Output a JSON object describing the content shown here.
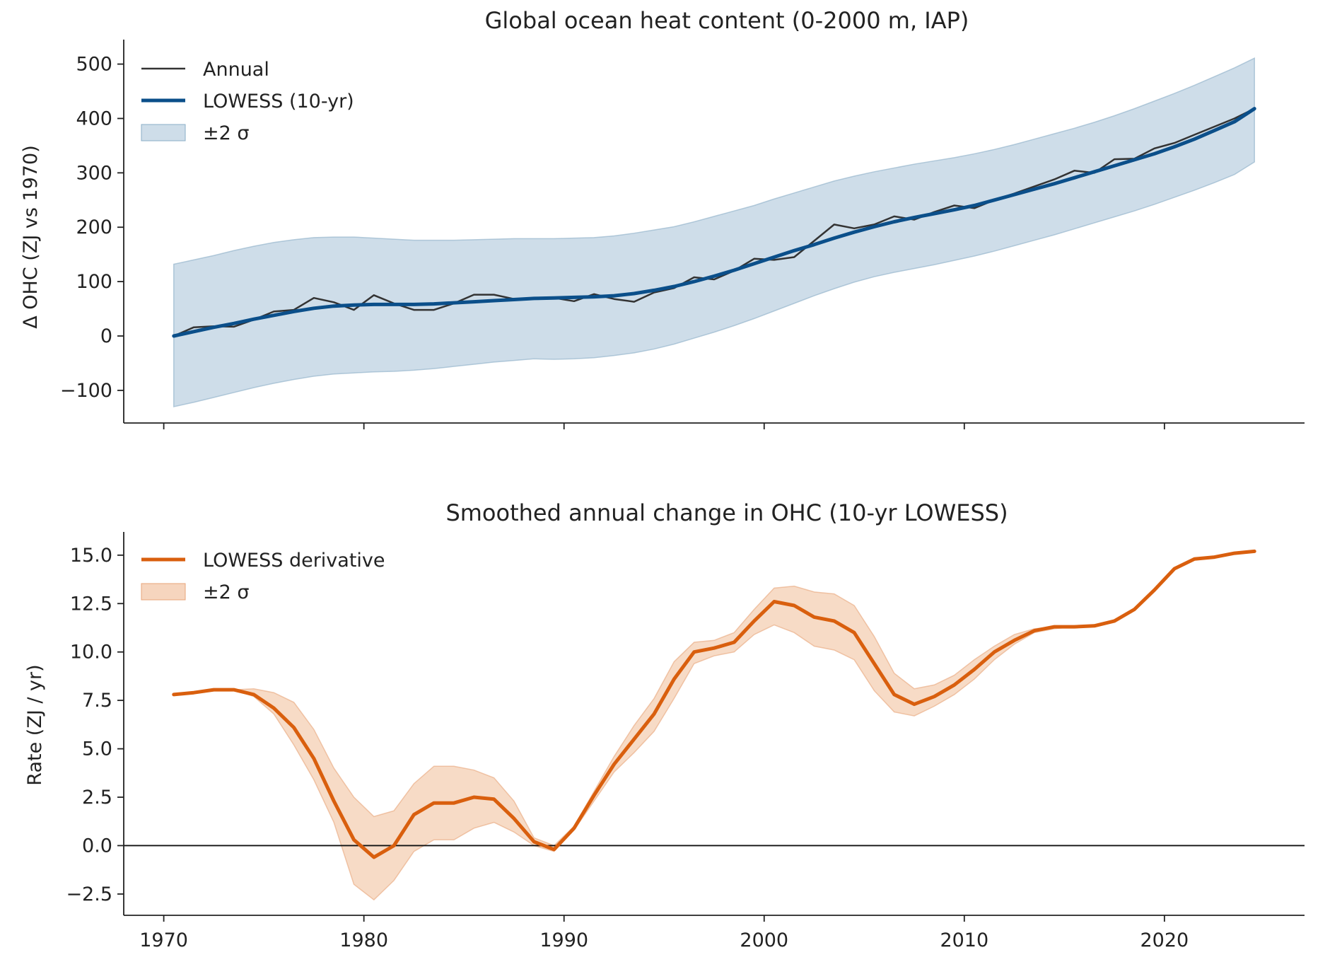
{
  "chart_data": [
    {
      "type": "line",
      "title": "Global ocean heat content (0-2000 m, IAP)",
      "xlabel": "",
      "ylabel": "Δ OHC (ZJ vs 1970)",
      "xlim": [
        1968,
        2027
      ],
      "ylim": [
        -160,
        545
      ],
      "x_ticks": [
        1980,
        1990,
        2000,
        2010,
        2020
      ],
      "y_ticks": [
        -100,
        0,
        100,
        200,
        300,
        400,
        500
      ],
      "y_tick_labels": [
        "−100",
        "0",
        "100",
        "200",
        "300",
        "400",
        "500"
      ],
      "grid": false,
      "legend": "top-left",
      "series": [
        {
          "name": "Annual",
          "kind": "line",
          "color": "#333333",
          "x": [
            1970.5,
            1971.5,
            1972.5,
            1973.5,
            1974.5,
            1975.5,
            1976.5,
            1977.5,
            1978.5,
            1979.5,
            1980.5,
            1981.5,
            1982.5,
            1983.5,
            1984.5,
            1985.5,
            1986.5,
            1987.5,
            1988.5,
            1989.5,
            1990.5,
            1991.5,
            1992.5,
            1993.5,
            1994.5,
            1995.5,
            1996.5,
            1997.5,
            1998.5,
            1999.5,
            2000.5,
            2001.5,
            2002.5,
            2003.5,
            2004.5,
            2005.5,
            2006.5,
            2007.5,
            2008.5,
            2009.5,
            2010.5,
            2011.5,
            2012.5,
            2013.5,
            2014.5,
            2015.5,
            2016.5,
            2017.5,
            2018.5,
            2019.5,
            2020.5,
            2021.5,
            2022.5,
            2023.5,
            2024.5
          ],
          "y": [
            0,
            16,
            18,
            17,
            30,
            45,
            48,
            70,
            62,
            48,
            75,
            60,
            48,
            48,
            60,
            76,
            76,
            68,
            68,
            70,
            64,
            77,
            68,
            63,
            80,
            88,
            108,
            104,
            120,
            142,
            140,
            145,
            175,
            205,
            198,
            205,
            220,
            214,
            228,
            240,
            235,
            250,
            262,
            275,
            288,
            304,
            300,
            325,
            326,
            345,
            355,
            370,
            385,
            400,
            418
          ]
        },
        {
          "name": "LOWESS (10-yr)",
          "kind": "line",
          "color": "#0b4f8a",
          "x": [
            1970.5,
            1971.5,
            1972.5,
            1973.5,
            1974.5,
            1975.5,
            1976.5,
            1977.5,
            1978.5,
            1979.5,
            1980.5,
            1981.5,
            1982.5,
            1983.5,
            1984.5,
            1985.5,
            1986.5,
            1987.5,
            1988.5,
            1989.5,
            1990.5,
            1991.5,
            1992.5,
            1993.5,
            1994.5,
            1995.5,
            1996.5,
            1997.5,
            1998.5,
            1999.5,
            2000.5,
            2001.5,
            2002.5,
            2003.5,
            2004.5,
            2005.5,
            2006.5,
            2007.5,
            2008.5,
            2009.5,
            2010.5,
            2011.5,
            2012.5,
            2013.5,
            2014.5,
            2015.5,
            2016.5,
            2017.5,
            2018.5,
            2019.5,
            2020.5,
            2021.5,
            2022.5,
            2023.5,
            2024.5
          ],
          "y": [
            0,
            8,
            16,
            23,
            31,
            38,
            45,
            51,
            55,
            57,
            58,
            58,
            58,
            59,
            61,
            63,
            65,
            67,
            69,
            70,
            71,
            72,
            74,
            78,
            84,
            91,
            100,
            110,
            121,
            133,
            145,
            157,
            168,
            180,
            191,
            201,
            210,
            218,
            225,
            232,
            240,
            250,
            260,
            270,
            280,
            291,
            302,
            313,
            324,
            335,
            348,
            362,
            378,
            394,
            418
          ]
        },
        {
          "name": "±2 σ",
          "kind": "band",
          "color": "#aec7da",
          "x": [
            1970.5,
            1971.5,
            1972.5,
            1973.5,
            1974.5,
            1975.5,
            1976.5,
            1977.5,
            1978.5,
            1979.5,
            1980.5,
            1981.5,
            1982.5,
            1983.5,
            1984.5,
            1985.5,
            1986.5,
            1987.5,
            1988.5,
            1989.5,
            1990.5,
            1991.5,
            1992.5,
            1993.5,
            1994.5,
            1995.5,
            1996.5,
            1997.5,
            1998.5,
            1999.5,
            2000.5,
            2001.5,
            2002.5,
            2003.5,
            2004.5,
            2005.5,
            2006.5,
            2007.5,
            2008.5,
            2009.5,
            2010.5,
            2011.5,
            2012.5,
            2013.5,
            2014.5,
            2015.5,
            2016.5,
            2017.5,
            2018.5,
            2019.5,
            2020.5,
            2021.5,
            2022.5,
            2023.5,
            2024.5
          ],
          "lower": [
            -130,
            -122,
            -113,
            -104,
            -95,
            -87,
            -80,
            -74,
            -70,
            -68,
            -66,
            -65,
            -63,
            -60,
            -56,
            -52,
            -48,
            -45,
            -42,
            -43,
            -42,
            -40,
            -36,
            -31,
            -24,
            -15,
            -4,
            7,
            19,
            32,
            46,
            60,
            74,
            87,
            99,
            109,
            117,
            124,
            131,
            139,
            147,
            156,
            166,
            176,
            186,
            197,
            208,
            219,
            230,
            242,
            255,
            268,
            282,
            297,
            320
          ],
          "upper": [
            132,
            140,
            148,
            157,
            165,
            172,
            177,
            181,
            182,
            182,
            180,
            178,
            176,
            176,
            176,
            177,
            178,
            179,
            179,
            179,
            180,
            181,
            184,
            189,
            195,
            201,
            210,
            220,
            230,
            240,
            252,
            263,
            274,
            285,
            294,
            302,
            309,
            316,
            322,
            328,
            335,
            343,
            352,
            362,
            372,
            382,
            393,
            405,
            418,
            432,
            446,
            461,
            477,
            493,
            511
          ]
        }
      ]
    },
    {
      "type": "line",
      "title": "Smoothed annual change in OHC (10-yr LOWESS)",
      "xlabel": "",
      "ylabel": "Rate (ZJ / yr)",
      "xlim": [
        1968,
        2027
      ],
      "ylim": [
        -3.6,
        16.2
      ],
      "x_ticks": [
        1970,
        1980,
        1990,
        2000,
        2010,
        2020
      ],
      "y_ticks": [
        -2.5,
        0,
        2.5,
        5,
        7.5,
        10,
        12.5,
        15
      ],
      "y_tick_labels": [
        "−2.5",
        "0.0",
        "2.5",
        "5.0",
        "7.5",
        "10.0",
        "12.5",
        "15.0"
      ],
      "zero_line": 0,
      "grid": false,
      "legend": "top-left",
      "series": [
        {
          "name": "LOWESS derivative",
          "kind": "line",
          "color": "#d95f0e",
          "x": [
            1970.5,
            1971.5,
            1972.5,
            1973.5,
            1974.5,
            1975.5,
            1976.5,
            1977.5,
            1978.5,
            1979.5,
            1980.5,
            1981.5,
            1982.5,
            1983.5,
            1984.5,
            1985.5,
            1986.5,
            1987.5,
            1988.5,
            1989.5,
            1990.5,
            1991.5,
            1992.5,
            1993.5,
            1994.5,
            1995.5,
            1996.5,
            1997.5,
            1998.5,
            1999.5,
            2000.5,
            2001.5,
            2002.5,
            2003.5,
            2004.5,
            2005.5,
            2006.5,
            2007.5,
            2008.5,
            2009.5,
            2010.5,
            2011.5,
            2012.5,
            2013.5,
            2014.5,
            2015.5,
            2016.5,
            2017.5,
            2018.5,
            2019.5,
            2020.5,
            2021.5,
            2022.5,
            2023.5,
            2024.5
          ],
          "y": [
            7.8,
            7.9,
            8.05,
            8.05,
            7.8,
            7.1,
            6.1,
            4.5,
            2.3,
            0.3,
            -0.6,
            0.0,
            1.6,
            2.2,
            2.2,
            2.5,
            2.4,
            1.4,
            0.2,
            -0.2,
            0.9,
            2.6,
            4.2,
            5.5,
            6.8,
            8.6,
            10.0,
            10.2,
            10.5,
            11.6,
            12.6,
            12.4,
            11.8,
            11.6,
            11.0,
            9.4,
            7.8,
            7.3,
            7.7,
            8.3,
            9.1,
            10.0,
            10.6,
            11.1,
            11.3,
            11.3,
            11.35,
            11.6,
            12.2,
            13.2,
            14.3,
            14.8,
            14.9,
            15.1,
            15.2
          ]
        },
        {
          "name": "±2 σ",
          "kind": "band",
          "color": "#f3c7a8",
          "x": [
            1970.5,
            1971.5,
            1972.5,
            1973.5,
            1974.5,
            1975.5,
            1976.5,
            1977.5,
            1978.5,
            1979.5,
            1980.5,
            1981.5,
            1982.5,
            1983.5,
            1984.5,
            1985.5,
            1986.5,
            1987.5,
            1988.5,
            1989.5,
            1990.5,
            1991.5,
            1992.5,
            1993.5,
            1994.5,
            1995.5,
            1996.5,
            1997.5,
            1998.5,
            1999.5,
            2000.5,
            2001.5,
            2002.5,
            2003.5,
            2004.5,
            2005.5,
            2006.5,
            2007.5,
            2008.5,
            2009.5,
            2010.5,
            2011.5,
            2012.5,
            2013.5,
            2014.5,
            2015.5,
            2016.5,
            2017.5,
            2018.5,
            2019.5,
            2020.5,
            2021.5,
            2022.5,
            2023.5,
            2024.5
          ],
          "lower": [
            7.8,
            7.9,
            8.05,
            8.05,
            7.7,
            6.8,
            5.2,
            3.4,
            1.2,
            -2.0,
            -2.8,
            -1.8,
            -0.3,
            0.3,
            0.3,
            0.9,
            1.2,
            0.7,
            0.0,
            -0.3,
            0.8,
            2.3,
            3.8,
            4.8,
            5.9,
            7.6,
            9.4,
            9.8,
            10.0,
            10.9,
            11.4,
            11.0,
            10.3,
            10.1,
            9.6,
            8.0,
            6.9,
            6.7,
            7.2,
            7.8,
            8.6,
            9.6,
            10.4,
            11.0,
            11.2,
            11.3,
            11.35,
            11.6,
            12.2,
            13.2,
            14.3,
            14.8,
            14.9,
            15.1,
            15.2
          ],
          "upper": [
            7.8,
            7.9,
            8.05,
            8.05,
            8.1,
            7.9,
            7.4,
            6.0,
            4.0,
            2.5,
            1.5,
            1.8,
            3.2,
            4.1,
            4.1,
            3.9,
            3.5,
            2.3,
            0.4,
            0.0,
            1.0,
            2.8,
            4.6,
            6.2,
            7.6,
            9.5,
            10.5,
            10.6,
            11.0,
            12.2,
            13.3,
            13.4,
            13.1,
            13.0,
            12.4,
            10.8,
            8.9,
            8.1,
            8.3,
            8.8,
            9.6,
            10.3,
            10.9,
            11.2,
            11.3,
            11.3,
            11.35,
            11.6,
            12.2,
            13.2,
            14.3,
            14.8,
            14.9,
            15.1,
            15.2
          ]
        }
      ]
    }
  ]
}
